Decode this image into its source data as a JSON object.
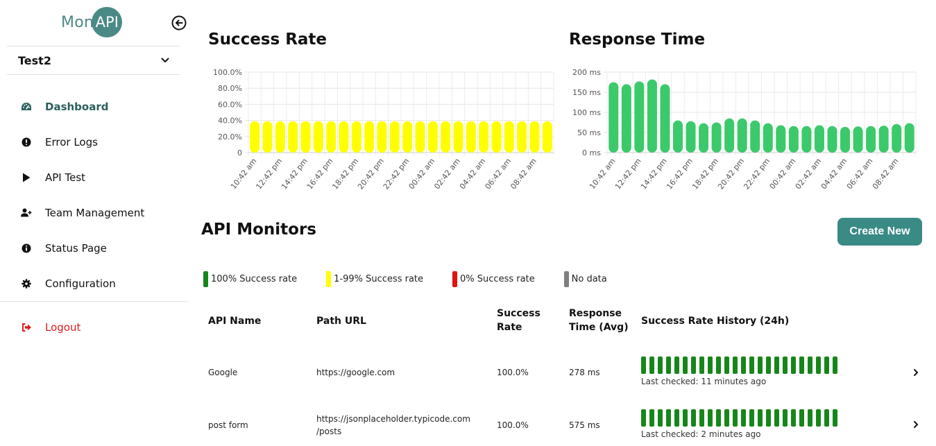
{
  "app": {
    "logo_left": "Mon",
    "logo_right": "API"
  },
  "sidebar": {
    "project": "Test2",
    "items": [
      {
        "label": "Dashboard",
        "icon": "dashboard-gauge-icon",
        "active": true
      },
      {
        "label": "Error Logs",
        "icon": "exclamation-circle-icon",
        "active": false
      },
      {
        "label": "API Test",
        "icon": "play-icon",
        "active": false
      },
      {
        "label": "Team Management",
        "icon": "user-plus-icon",
        "active": false
      },
      {
        "label": "Status Page",
        "icon": "info-circle-icon",
        "active": false
      },
      {
        "label": "Configuration",
        "icon": "gear-icon",
        "active": false
      }
    ],
    "logout": "Logout"
  },
  "charts": {
    "success_title": "Success Rate",
    "response_title": "Response Time"
  },
  "chart_data": [
    {
      "type": "bar",
      "title": "Success Rate",
      "color": "#ffff00",
      "ylim": [
        0,
        100
      ],
      "yticks": [
        "0",
        "20.0%",
        "40.0%",
        "60.0%",
        "80.0%",
        "100.0%"
      ],
      "xticks": [
        "10:42 am",
        "12:42 pm",
        "14:42 pm",
        "16:42 pm",
        "18:42 pm",
        "20:42 pm",
        "22:42 pm",
        "00:42 am",
        "02:42 am",
        "04:42 am",
        "06:42 am",
        "08:42 am"
      ],
      "values": [
        39,
        39,
        39,
        39,
        39,
        39,
        39,
        39,
        39,
        39,
        39,
        39,
        39,
        39,
        39,
        39,
        39,
        39,
        39,
        39,
        39,
        39,
        39,
        39
      ],
      "grid": true
    },
    {
      "type": "bar",
      "title": "Response Time",
      "color": "#3cc96b",
      "ylim": [
        0,
        200
      ],
      "yticks": [
        "0 ms",
        "50 ms",
        "100 ms",
        "150 ms",
        "200 ms"
      ],
      "xticks": [
        "10:42 am",
        "12:42 pm",
        "14:42 pm",
        "16:42 pm",
        "18:42 pm",
        "20:42 pm",
        "22:42 pm",
        "00:42 am",
        "02:42 am",
        "04:42 am",
        "06:42 am",
        "08:42 am"
      ],
      "values": [
        175,
        170,
        177,
        182,
        170,
        80,
        78,
        73,
        75,
        85,
        85,
        80,
        73,
        68,
        66,
        66,
        68,
        66,
        64,
        65,
        66,
        67,
        71,
        73
      ],
      "grid": true
    }
  ],
  "monitors": {
    "title": "API Monitors",
    "create_label": "Create New",
    "legend": [
      {
        "label": "100% Success rate",
        "color": "#17861a"
      },
      {
        "label": "1-99% Success rate",
        "color": "#ffff00"
      },
      {
        "label": "0% Success rate",
        "color": "#e31212"
      },
      {
        "label": "No data",
        "color": "#7f7f7f"
      }
    ],
    "columns": {
      "name": "API Name",
      "path": "Path URL",
      "success_line1": "Success",
      "success_line2": "Rate",
      "response_line1": "Response",
      "response_line2": "Time (Avg)",
      "history": "Success Rate History (24h)"
    },
    "rows": [
      {
        "name": "Google",
        "path_line1": "https://google.com",
        "path_line2": "",
        "success": "100.0%",
        "response": "278 ms",
        "checked": "Last checked: 11 minutes ago",
        "history_count": 24
      },
      {
        "name": "post form",
        "path_line1": "https://jsonplaceholder.typicode.com",
        "path_line2": "/posts",
        "success": "100.0%",
        "response": "575 ms",
        "checked": "Last checked: 2 minutes ago",
        "history_count": 24
      }
    ]
  }
}
